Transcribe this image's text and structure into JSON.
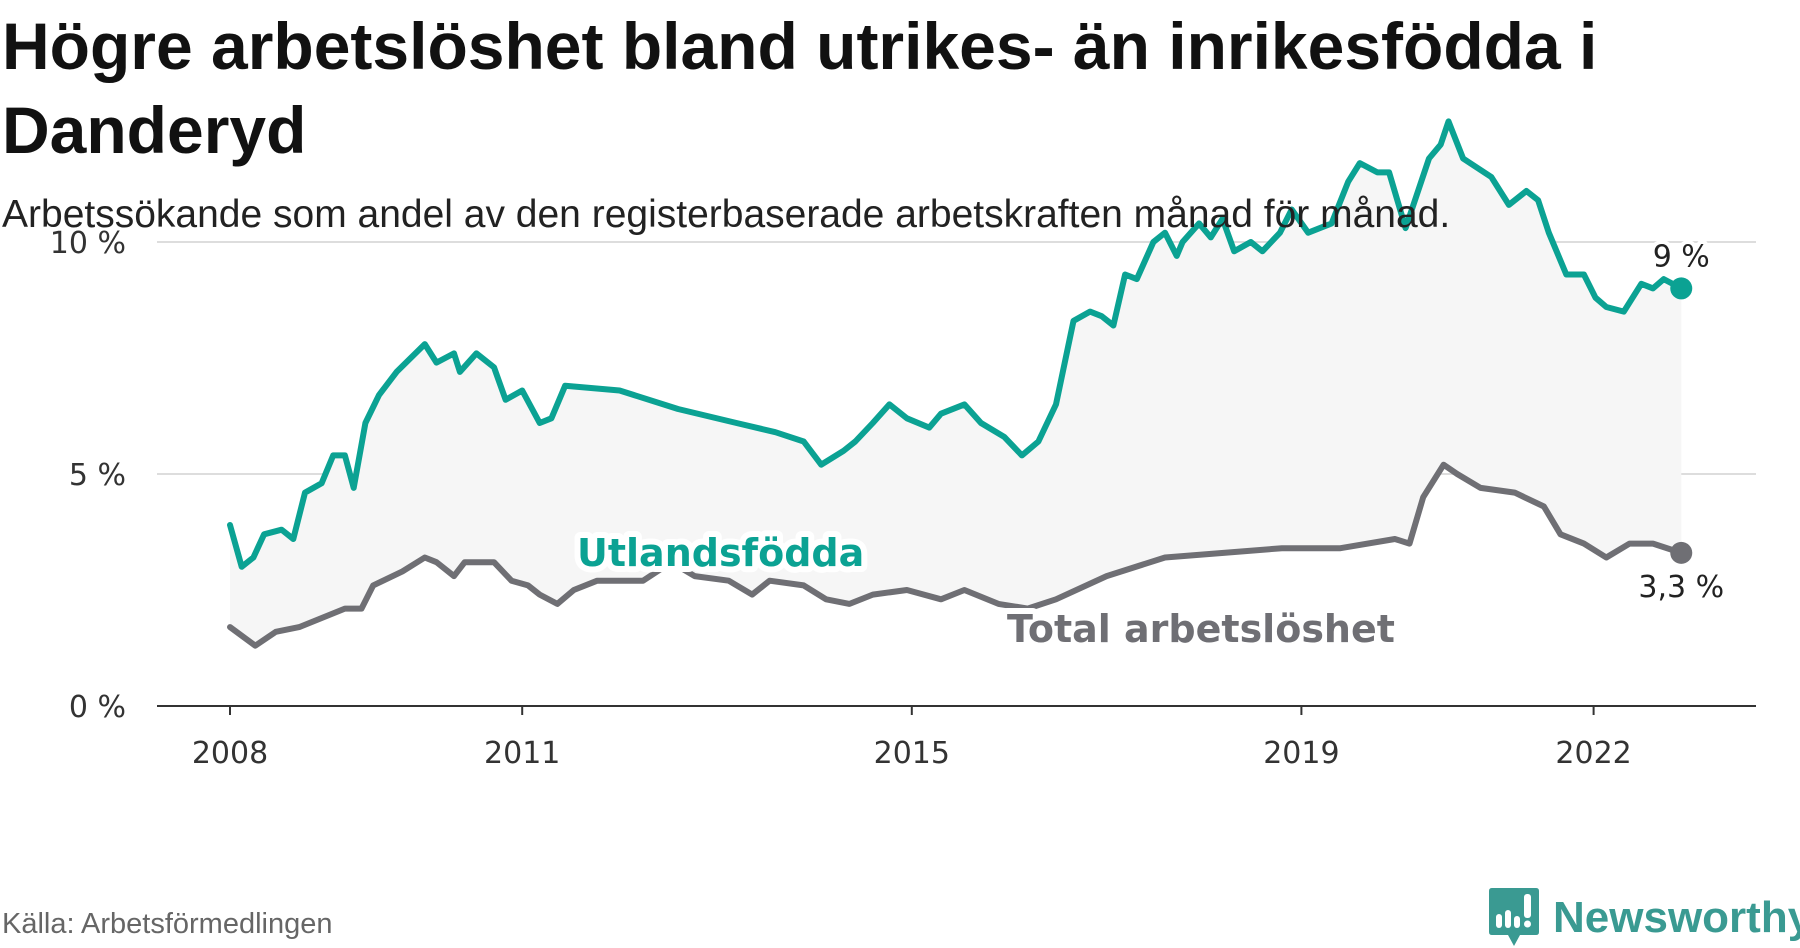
{
  "title": "Högre arbetslöshet bland utrikes- än inrikesfödda i Danderyd",
  "subtitle": "Arbetssökande som andel av den registerbaserade arbetskraften månad för månad.",
  "source": "Källa: Arbetsförmedlingen",
  "logo_text": "Newsworthy",
  "colors": {
    "foreign": "#0ba293",
    "total": "#6f6f74",
    "band": "#f6f6f6",
    "grid": "#dddddd",
    "logo": "#3a9a92"
  },
  "chart_data": {
    "type": "line",
    "title": "Högre arbetslöshet bland utrikes- än inrikesfödda i Danderyd",
    "xlabel": "",
    "ylabel": "",
    "xlim": [
      2007.3,
      2023.7
    ],
    "ylim": [
      0,
      14.5
    ],
    "x_ticks": [
      2008,
      2011,
      2015,
      2019,
      2022
    ],
    "x_tick_labels": [
      "2008",
      "2011",
      "2015",
      "2019",
      "2022"
    ],
    "y_ticks": [
      0,
      5,
      10
    ],
    "y_tick_labels": [
      "0 %",
      "5 %",
      "10 %"
    ],
    "grid": true,
    "series": [
      {
        "name": "Utlandsfödda",
        "end_label": "9 %",
        "points": [
          [
            2008.0,
            3.9
          ],
          [
            2008.12,
            3.0
          ],
          [
            2008.24,
            3.2
          ],
          [
            2008.35,
            3.7
          ],
          [
            2008.53,
            3.8
          ],
          [
            2008.65,
            3.6
          ],
          [
            2008.77,
            4.6
          ],
          [
            2008.94,
            4.8
          ],
          [
            2009.06,
            5.4
          ],
          [
            2009.18,
            5.4
          ],
          [
            2009.27,
            4.7
          ],
          [
            2009.39,
            6.1
          ],
          [
            2009.53,
            6.7
          ],
          [
            2009.71,
            7.2
          ],
          [
            2010.0,
            7.8
          ],
          [
            2010.12,
            7.4
          ],
          [
            2010.3,
            7.6
          ],
          [
            2010.36,
            7.2
          ],
          [
            2010.53,
            7.6
          ],
          [
            2010.71,
            7.3
          ],
          [
            2010.83,
            6.6
          ],
          [
            2011.0,
            6.8
          ],
          [
            2011.18,
            6.1
          ],
          [
            2011.3,
            6.2
          ],
          [
            2011.44,
            6.9
          ],
          [
            2012.0,
            6.8
          ],
          [
            2012.6,
            6.4
          ],
          [
            2013.2,
            6.1
          ],
          [
            2013.6,
            5.9
          ],
          [
            2013.89,
            5.7
          ],
          [
            2014.07,
            5.2
          ],
          [
            2014.3,
            5.5
          ],
          [
            2014.42,
            5.7
          ],
          [
            2014.6,
            6.1
          ],
          [
            2014.77,
            6.5
          ],
          [
            2014.95,
            6.2
          ],
          [
            2015.18,
            6.0
          ],
          [
            2015.3,
            6.3
          ],
          [
            2015.54,
            6.5
          ],
          [
            2015.71,
            6.1
          ],
          [
            2015.95,
            5.8
          ],
          [
            2016.13,
            5.4
          ],
          [
            2016.3,
            5.7
          ],
          [
            2016.48,
            6.5
          ],
          [
            2016.66,
            8.3
          ],
          [
            2016.83,
            8.5
          ],
          [
            2016.95,
            8.4
          ],
          [
            2017.07,
            8.2
          ],
          [
            2017.19,
            9.3
          ],
          [
            2017.31,
            9.2
          ],
          [
            2017.48,
            10.0
          ],
          [
            2017.6,
            10.2
          ],
          [
            2017.72,
            9.7
          ],
          [
            2017.78,
            10.0
          ],
          [
            2017.95,
            10.4
          ],
          [
            2018.07,
            10.1
          ],
          [
            2018.19,
            10.5
          ],
          [
            2018.31,
            9.8
          ],
          [
            2018.48,
            10.0
          ],
          [
            2018.6,
            9.8
          ],
          [
            2018.78,
            10.2
          ],
          [
            2018.9,
            10.7
          ],
          [
            2019.07,
            10.2
          ],
          [
            2019.31,
            10.4
          ],
          [
            2019.48,
            11.3
          ],
          [
            2019.6,
            11.7
          ],
          [
            2019.78,
            11.5
          ],
          [
            2019.9,
            11.5
          ],
          [
            2020.07,
            10.3
          ],
          [
            2020.31,
            11.8
          ],
          [
            2020.43,
            12.1
          ],
          [
            2020.51,
            12.6
          ],
          [
            2020.66,
            11.8
          ],
          [
            2020.95,
            11.4
          ],
          [
            2021.13,
            10.8
          ],
          [
            2021.31,
            11.1
          ],
          [
            2021.43,
            10.9
          ],
          [
            2021.54,
            10.2
          ],
          [
            2021.72,
            9.3
          ],
          [
            2021.9,
            9.3
          ],
          [
            2022.02,
            8.8
          ],
          [
            2022.13,
            8.6
          ],
          [
            2022.31,
            8.5
          ],
          [
            2022.49,
            9.1
          ],
          [
            2022.61,
            9.0
          ],
          [
            2022.72,
            9.2
          ],
          [
            2022.9,
            9.0
          ]
        ]
      },
      {
        "name": "Total arbetslöshet",
        "end_label": "3,3 %",
        "points": [
          [
            2008.0,
            1.7
          ],
          [
            2008.26,
            1.3
          ],
          [
            2008.47,
            1.6
          ],
          [
            2008.71,
            1.7
          ],
          [
            2009.18,
            2.1
          ],
          [
            2009.35,
            2.1
          ],
          [
            2009.47,
            2.6
          ],
          [
            2009.77,
            2.9
          ],
          [
            2010.0,
            3.2
          ],
          [
            2010.12,
            3.1
          ],
          [
            2010.3,
            2.8
          ],
          [
            2010.41,
            3.1
          ],
          [
            2010.59,
            3.1
          ],
          [
            2010.71,
            3.1
          ],
          [
            2010.89,
            2.7
          ],
          [
            2011.06,
            2.6
          ],
          [
            2011.18,
            2.4
          ],
          [
            2011.36,
            2.2
          ],
          [
            2011.53,
            2.5
          ],
          [
            2011.77,
            2.7
          ],
          [
            2012.24,
            2.7
          ],
          [
            2012.53,
            3.1
          ],
          [
            2012.77,
            2.8
          ],
          [
            2013.12,
            2.7
          ],
          [
            2013.36,
            2.4
          ],
          [
            2013.54,
            2.7
          ],
          [
            2013.89,
            2.6
          ],
          [
            2014.12,
            2.3
          ],
          [
            2014.36,
            2.2
          ],
          [
            2014.6,
            2.4
          ],
          [
            2014.95,
            2.5
          ],
          [
            2015.3,
            2.3
          ],
          [
            2015.54,
            2.5
          ],
          [
            2015.89,
            2.2
          ],
          [
            2016.19,
            2.1
          ],
          [
            2016.48,
            2.3
          ],
          [
            2017.0,
            2.8
          ],
          [
            2017.6,
            3.2
          ],
          [
            2018.2,
            3.3
          ],
          [
            2018.8,
            3.4
          ],
          [
            2019.4,
            3.4
          ],
          [
            2019.96,
            3.6
          ],
          [
            2020.11,
            3.5
          ],
          [
            2020.25,
            4.5
          ],
          [
            2020.46,
            5.2
          ],
          [
            2020.6,
            5.0
          ],
          [
            2020.84,
            4.7
          ],
          [
            2021.19,
            4.6
          ],
          [
            2021.49,
            4.3
          ],
          [
            2021.66,
            3.7
          ],
          [
            2021.9,
            3.5
          ],
          [
            2022.13,
            3.2
          ],
          [
            2022.37,
            3.5
          ],
          [
            2022.61,
            3.5
          ],
          [
            2022.9,
            3.3
          ]
        ]
      }
    ]
  }
}
